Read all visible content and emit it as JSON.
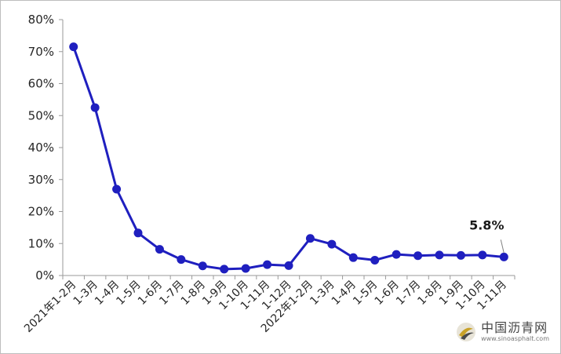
{
  "chart_data": {
    "type": "line",
    "title": "",
    "xlabel": "",
    "ylabel": "",
    "ylim": [
      0,
      80
    ],
    "y_ticks": [
      "0%",
      "10%",
      "20%",
      "30%",
      "40%",
      "50%",
      "60%",
      "70%",
      "80%"
    ],
    "grid": false,
    "categories": [
      "2021年1-2月",
      "1-3月",
      "1-4月",
      "1-5月",
      "1-6月",
      "1-7月",
      "1-8月",
      "1-9月",
      "1-10月",
      "1-11月",
      "1-12月",
      "2022年1-2月",
      "1-3月",
      "1-4月",
      "1-5月",
      "1-6月",
      "1-7月",
      "1-8月",
      "1-9月",
      "1-10月",
      "1-11月"
    ],
    "series": [
      {
        "values": [
          71.5,
          52.5,
          27.0,
          13.3,
          8.2,
          5.0,
          3.0,
          2.0,
          2.2,
          3.4,
          3.1,
          11.6,
          9.8,
          5.6,
          4.8,
          6.6,
          6.2,
          6.4,
          6.3,
          6.4,
          5.8
        ],
        "color": "#1f1fbf"
      }
    ],
    "annotations": [
      {
        "text": "5.8%",
        "category_index": 20
      }
    ]
  },
  "watermark": {
    "name": "中国沥青网",
    "url": "www.sinoasphalt.com",
    "icon": "asphalt-network-logo-icon"
  }
}
